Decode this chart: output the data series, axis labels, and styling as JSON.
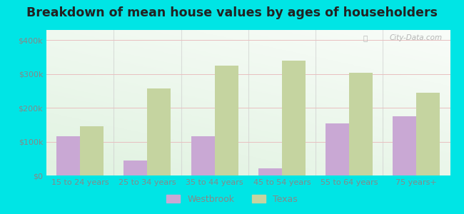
{
  "categories": [
    "15 to 24 years",
    "25 to 34 years",
    "35 to 44 years",
    "45 to 54 years",
    "55 to 64 years",
    "75 years+"
  ],
  "westbrook": [
    115000,
    45000,
    115000,
    22000,
    153000,
    175000
  ],
  "texas": [
    145000,
    258000,
    325000,
    340000,
    303000,
    245000
  ],
  "westbrook_color": "#c9a8d4",
  "texas_color": "#c5d4a0",
  "background_color": "#00e5e5",
  "title": "Breakdown of mean house values by ages of householders",
  "title_fontsize": 12.5,
  "ylabel_ticks": [
    0,
    100000,
    200000,
    300000,
    400000
  ],
  "ylabel_labels": [
    "$0",
    "$100k",
    "$200k",
    "$300k",
    "$400k"
  ],
  "ylim": [
    0,
    430000
  ],
  "legend_westbrook": "Westbrook",
  "legend_texas": "Texas",
  "bar_width": 0.35,
  "watermark": "City-Data.com",
  "tick_color": "#888888",
  "grid_color": "#e8c0c0",
  "label_fontsize": 8.0
}
